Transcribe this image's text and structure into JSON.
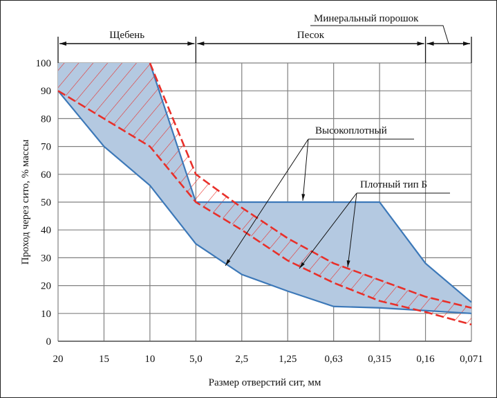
{
  "chart_data": {
    "type": "area",
    "title": "",
    "xlabel": "Размер отверстий сит, мм",
    "ylabel": "Проход через сито, % массы",
    "categories": [
      "20",
      "15",
      "10",
      "5,0",
      "2,5",
      "1,25",
      "0,63",
      "0,315",
      "0,16",
      "0,071"
    ],
    "ylim": [
      0,
      100
    ],
    "yticks": [
      "0",
      "10",
      "20",
      "30",
      "40",
      "50",
      "60",
      "70",
      "80",
      "90",
      "100"
    ],
    "grid": true,
    "ranges": [
      {
        "label": "Щебень",
        "from": "20",
        "to": "5,0"
      },
      {
        "label": "Песок",
        "from": "5,0",
        "to": "0,16"
      },
      {
        "label": "Минеральный порошок",
        "from": "0,16",
        "to": "0,071"
      }
    ],
    "series": [
      {
        "name": "Высокоплотный",
        "style": "blue filled band",
        "upper": [
          100,
          100,
          100,
          50,
          50,
          50,
          50,
          50,
          28,
          14
        ],
        "lower": [
          90,
          70,
          56,
          35,
          24,
          18,
          12.5,
          12,
          11,
          10
        ]
      },
      {
        "name": "Плотный тип Б",
        "style": "red dashed hatched band",
        "upper": [
          100,
          100,
          100,
          60,
          48,
          37,
          28,
          22,
          16,
          12
        ],
        "lower": [
          90,
          80,
          70,
          50,
          40,
          29,
          21,
          14.5,
          10.5,
          6
        ]
      }
    ],
    "colors": {
      "blue_fill": "#b4c9e1",
      "blue_line": "#3c78b8",
      "red": "#e8302a",
      "grid": "#808080"
    }
  }
}
